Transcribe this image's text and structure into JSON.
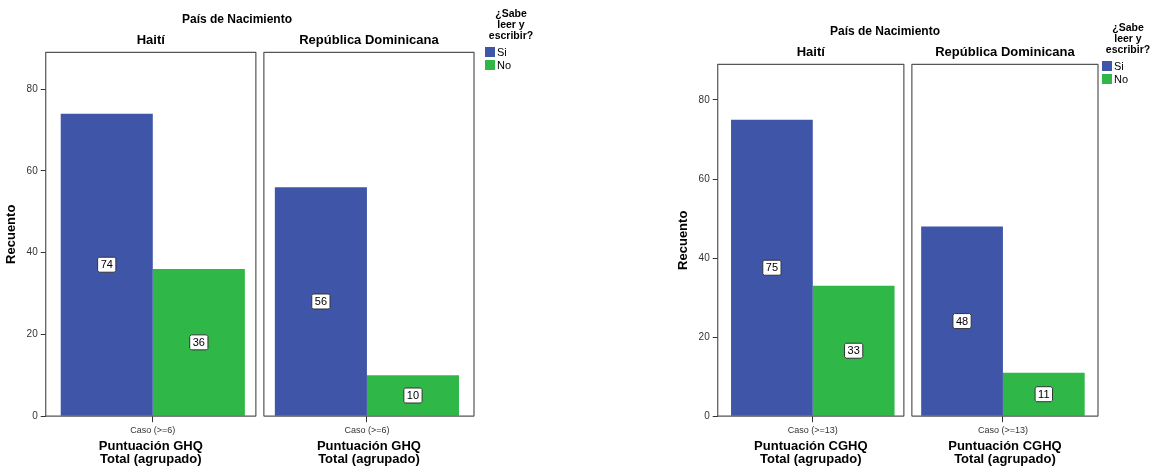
{
  "chart_data": [
    {
      "type": "bar",
      "title": "País de Nacimiento",
      "annotations": [
        "Haití",
        "República Dominicana"
      ],
      "categories": [
        "Caso (>=6)",
        "Caso (>=6)"
      ],
      "xlabel": "Puntuación GHQ Total (agrupado)",
      "ylabel": "Recuento",
      "ylim": [
        0,
        89
      ],
      "yticks": [
        0,
        20,
        40,
        60,
        80
      ],
      "data_labels": true,
      "grid": false,
      "legend": "top right",
      "legend_title": "¿Sabe leer y escribir?",
      "series": [
        {
          "name": "Si",
          "color": "#3f56a8",
          "values": [
            74,
            56
          ]
        },
        {
          "name": "No",
          "color": "#2fb847",
          "values": [
            36,
            10
          ]
        }
      ]
    },
    {
      "type": "bar",
      "title": "País de Nacimiento",
      "annotations": [
        "Haití",
        "República Dominicana"
      ],
      "categories": [
        "Caso (>=13)",
        "Caso (>=13)"
      ],
      "xlabel": "Puntuación CGHQ Total (agrupado)",
      "ylabel": "Recuento",
      "ylim": [
        0,
        89
      ],
      "yticks": [
        0,
        20,
        40,
        60,
        80
      ],
      "data_labels": true,
      "grid": false,
      "legend": "top right",
      "legend_title": "¿Sabe leer y escribir?",
      "series": [
        {
          "name": "Si",
          "color": "#3f56a8",
          "values": [
            75,
            48
          ]
        },
        {
          "name": "No",
          "color": "#2fb847",
          "values": [
            33,
            11
          ]
        }
      ]
    }
  ]
}
